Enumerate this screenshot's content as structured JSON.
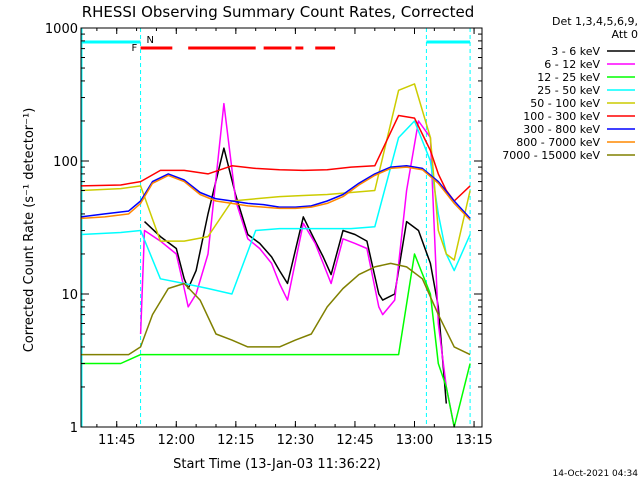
{
  "chart_data": {
    "type": "line",
    "title": "RHESSI Observing Summary Count Rates, Corrected",
    "xlabel": "Start Time (13-Jan-03 11:36:22)",
    "ylabel": "Corrected Count Rate (s⁻¹ detector⁻¹)",
    "xticks": [
      "11:45",
      "12:00",
      "12:15",
      "12:30",
      "12:45",
      "13:00",
      "13:15"
    ],
    "yticks": [
      "1",
      "10",
      "100",
      "1000"
    ],
    "ylog": true,
    "ylim": [
      1,
      1000
    ],
    "xlim_minutes": [
      696,
      797
    ],
    "legend_header": [
      "Det 1,3,4,5,6,9,",
      "Att 0"
    ],
    "timestamp": "14-Oct-2021 04:34",
    "flags": {
      "N": {
        "label": "N",
        "color": "#00ffff"
      },
      "F": {
        "label": "F",
        "color": "#ff0000"
      }
    },
    "segments": {
      "night": [
        [
          696,
          711
        ],
        [
          783,
          794
        ]
      ],
      "flare": [
        [
          711,
          719
        ],
        [
          723,
          740
        ],
        [
          742,
          749
        ],
        [
          750,
          752
        ],
        [
          755,
          760
        ]
      ],
      "saa_boundaries": [
        711,
        783,
        794
      ]
    },
    "series": [
      {
        "name": "3 - 6 keV",
        "color": "#000000",
        "x": [
          696,
          702,
          708,
          711,
          712,
          716,
          720,
          722,
          723,
          725,
          728,
          732,
          735,
          738,
          741,
          744,
          746,
          748,
          752,
          755,
          757,
          759,
          762,
          765,
          768,
          771,
          772,
          775,
          778,
          781,
          784,
          786,
          788,
          790,
          792,
          794
        ],
        "y": [
          null,
          null,
          null,
          null,
          35,
          27,
          22,
          13,
          11,
          15,
          40,
          125,
          55,
          28,
          24,
          19,
          15,
          12,
          38,
          25,
          19,
          14,
          30,
          28,
          25,
          10,
          9,
          10,
          35,
          30,
          17,
          8,
          1.5,
          null,
          null,
          null
        ]
      },
      {
        "name": "6 - 12 keV",
        "color": "#ff00ff",
        "x": [
          711,
          712,
          716,
          720,
          722,
          723,
          725,
          728,
          732,
          735,
          738,
          741,
          744,
          746,
          748,
          752,
          755,
          757,
          759,
          762,
          765,
          768,
          771,
          772,
          775,
          778,
          781,
          784,
          786,
          788,
          790
        ],
        "y": [
          5,
          30,
          25,
          20,
          11,
          8,
          10,
          20,
          270,
          50,
          26,
          22,
          17,
          12,
          9,
          34,
          24,
          17,
          12,
          26,
          24,
          22,
          8,
          7,
          9,
          60,
          200,
          150,
          6,
          2,
          1
        ]
      },
      {
        "name": "12 - 25 keV",
        "color": "#00ff00",
        "x": [
          696,
          706,
          711,
          716,
          722,
          728,
          734,
          740,
          746,
          752,
          758,
          764,
          770,
          776,
          780,
          784,
          786,
          788,
          790,
          794
        ],
        "y": [
          3,
          3,
          3.5,
          3.5,
          3.5,
          3.5,
          3.5,
          3.5,
          3.5,
          3.5,
          3.5,
          3.5,
          3.5,
          3.5,
          20,
          10,
          3,
          2,
          1,
          3
        ]
      },
      {
        "name": "25 - 50 keV",
        "color": "#00ffff",
        "x": [
          696,
          706,
          711,
          716,
          722,
          728,
          734,
          740,
          746,
          752,
          758,
          764,
          770,
          776,
          780,
          784,
          786,
          788,
          790,
          794
        ],
        "y": [
          28,
          29,
          30,
          13,
          12,
          11,
          10,
          30,
          31,
          31,
          31,
          31,
          32,
          150,
          200,
          100,
          40,
          20,
          15,
          28
        ]
      },
      {
        "name": "50 - 100 keV",
        "color": "#cccc00",
        "x": [
          696,
          706,
          711,
          716,
          722,
          728,
          734,
          740,
          746,
          752,
          758,
          764,
          770,
          776,
          780,
          784,
          786,
          788,
          790,
          794
        ],
        "y": [
          60,
          62,
          65,
          25,
          25,
          27,
          50,
          52,
          54,
          55,
          56,
          58,
          60,
          340,
          380,
          150,
          30,
          20,
          18,
          60
        ]
      },
      {
        "name": "100 - 300 keV",
        "color": "#ff0000",
        "x": [
          696,
          706,
          711,
          716,
          722,
          728,
          734,
          740,
          746,
          752,
          758,
          764,
          770,
          776,
          780,
          784,
          786,
          788,
          790,
          794
        ],
        "y": [
          65,
          66,
          70,
          85,
          85,
          80,
          92,
          88,
          86,
          85,
          86,
          90,
          92,
          220,
          210,
          120,
          80,
          60,
          50,
          65
        ]
      },
      {
        "name": "300 - 800 keV",
        "color": "#0000ff",
        "x": [
          696,
          702,
          708,
          711,
          714,
          718,
          722,
          726,
          730,
          734,
          738,
          742,
          746,
          750,
          754,
          758,
          762,
          766,
          770,
          774,
          778,
          782,
          786,
          790,
          794
        ],
        "y": [
          38,
          40,
          42,
          50,
          70,
          80,
          72,
          58,
          52,
          50,
          48,
          47,
          45,
          45,
          46,
          50,
          56,
          68,
          80,
          90,
          92,
          88,
          70,
          50,
          37
        ]
      },
      {
        "name": "800 - 7000 keV",
        "color": "#ff8800",
        "x": [
          696,
          702,
          708,
          711,
          714,
          718,
          722,
          726,
          730,
          734,
          738,
          742,
          746,
          750,
          754,
          758,
          762,
          766,
          770,
          774,
          778,
          782,
          786,
          790,
          794
        ],
        "y": [
          37,
          38,
          40,
          48,
          68,
          78,
          70,
          56,
          50,
          48,
          46,
          45,
          44,
          44,
          45,
          48,
          54,
          66,
          78,
          88,
          90,
          86,
          68,
          48,
          36
        ]
      },
      {
        "name": "7000 - 15000 keV",
        "color": "#808000",
        "x": [
          696,
          702,
          708,
          711,
          714,
          718,
          722,
          726,
          730,
          734,
          738,
          742,
          746,
          750,
          754,
          758,
          762,
          766,
          770,
          774,
          778,
          782,
          786,
          790,
          794
        ],
        "y": [
          3.5,
          3.5,
          3.5,
          4,
          7,
          11,
          12,
          9,
          5,
          4.5,
          4,
          4,
          4,
          4.5,
          5,
          8,
          11,
          14,
          16,
          17,
          16,
          13,
          7,
          4,
          3.5
        ]
      }
    ]
  }
}
